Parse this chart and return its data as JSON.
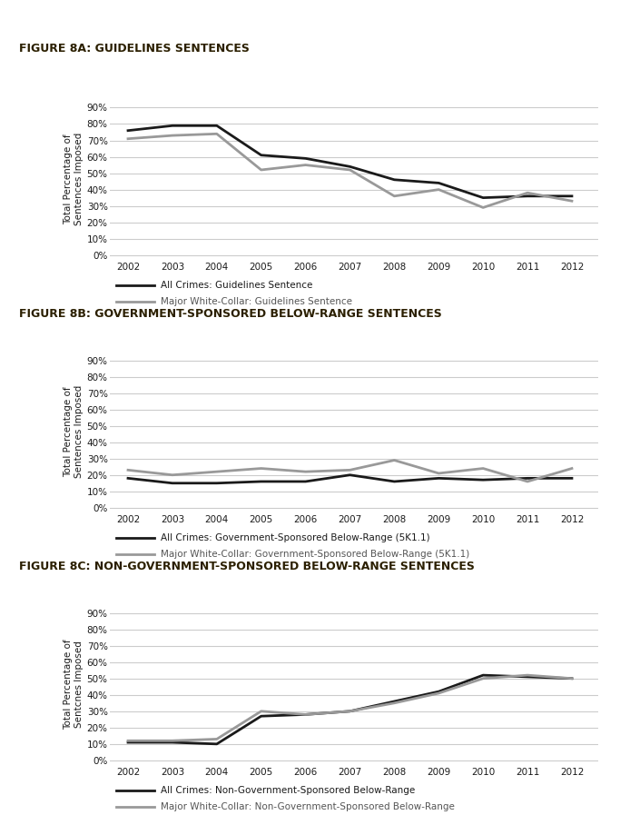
{
  "years": [
    2002,
    2003,
    2004,
    2005,
    2006,
    2007,
    2008,
    2009,
    2010,
    2011,
    2012
  ],
  "fig8a": {
    "title": "FIGURE 8A: GUIDELINES SENTENCES",
    "all_crimes": [
      76,
      79,
      79,
      61,
      59,
      54,
      46,
      44,
      35,
      36,
      36
    ],
    "white_collar": [
      71,
      73,
      74,
      52,
      55,
      52,
      36,
      40,
      29,
      38,
      33
    ],
    "legend1": "All Crimes: Guidelines Sentence",
    "legend2": "Major White-Collar: Guidelines Sentence"
  },
  "fig8b": {
    "title": "FIGURE 8B: GOVERNMENT-SPONSORED BELOW-RANGE SENTENCES",
    "all_crimes": [
      18,
      15,
      15,
      16,
      16,
      20,
      16,
      18,
      17,
      18,
      18
    ],
    "white_collar": [
      23,
      20,
      22,
      24,
      22,
      23,
      29,
      21,
      24,
      16,
      24
    ],
    "legend1": "All Crimes: Government-Sponsored Below-Range (5K1.1)",
    "legend2": "Major White-Collar: Government-Sponsored Below-Range (5K1.1)"
  },
  "fig8c": {
    "title": "FIGURE 8C: NON-GOVERNMENT-SPONSORED BELOW-RANGE SENTENCES",
    "all_crimes": [
      11,
      11,
      10,
      27,
      28,
      30,
      36,
      42,
      52,
      51,
      50
    ],
    "white_collar": [
      12,
      12,
      13,
      30,
      28,
      30,
      35,
      41,
      50,
      52,
      50
    ],
    "legend1": "All Crimes: Non-Government-Sponsored Below-Range",
    "legend2": "Major White-Collar: Non-Government-Sponsored Below-Range"
  },
  "ylabel_ab": "Total Percentage of\nSentences Imposed",
  "ylabel_c": "Total Percentage of\nSentcnes Imposed",
  "black_color": "#1a1a1a",
  "gray_color": "#999999",
  "title_color": "#2b1f00",
  "bg_color": "#ffffff",
  "grid_color": "#cccccc",
  "yticks": [
    0,
    10,
    20,
    30,
    40,
    50,
    60,
    70,
    80,
    90
  ],
  "ylabels": [
    "0%",
    "10%",
    "20%",
    "30%",
    "40%",
    "50%",
    "60%",
    "70%",
    "80%",
    "90%"
  ]
}
